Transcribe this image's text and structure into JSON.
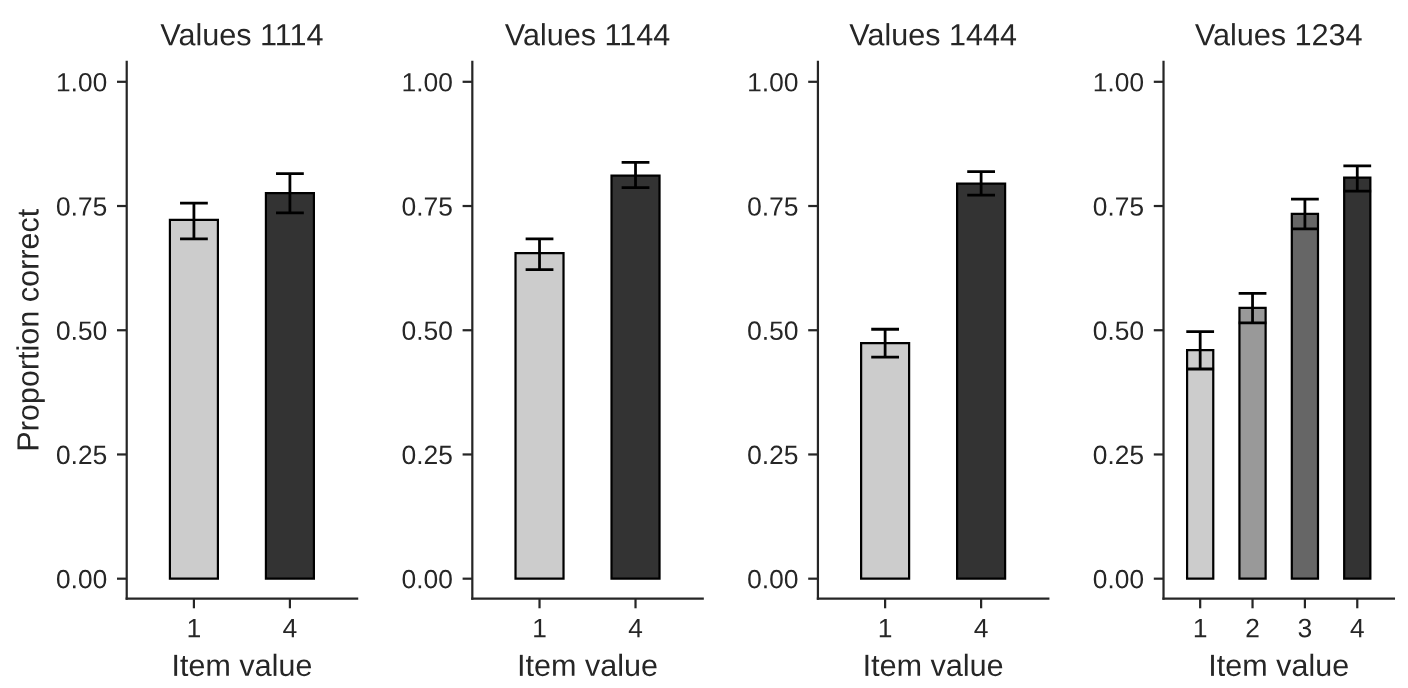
{
  "chart_data": [
    {
      "type": "bar",
      "title": "Values 1114",
      "xlabel": "Item value",
      "ylabel": "Proportion correct",
      "categories": [
        "1",
        "4"
      ],
      "values": [
        0.722,
        0.776
      ],
      "colors": [
        "#cccccc",
        "#333333"
      ],
      "errors": [
        [
          0.684,
          0.756
        ],
        [
          0.736,
          0.815
        ]
      ],
      "ylim": [
        -0.04,
        1.04
      ],
      "yticks": [
        {
          "value": 0,
          "label": "0.00"
        },
        {
          "value": 0.25,
          "label": "0.25"
        },
        {
          "value": 0.5,
          "label": "0.50"
        },
        {
          "value": 0.75,
          "label": "0.75"
        },
        {
          "value": 1,
          "label": "1.00"
        }
      ],
      "grid": false
    },
    {
      "type": "bar",
      "title": "Values 1144",
      "xlabel": "Item value",
      "categories": [
        "1",
        "4"
      ],
      "values": [
        0.655,
        0.811
      ],
      "colors": [
        "#cccccc",
        "#333333"
      ],
      "errors": [
        [
          0.622,
          0.684
        ],
        [
          0.787,
          0.838
        ]
      ],
      "ylim": [
        -0.04,
        1.04
      ],
      "yticks": [
        {
          "value": 0,
          "label": "0.00"
        },
        {
          "value": 0.25,
          "label": "0.25"
        },
        {
          "value": 0.5,
          "label": "0.50"
        },
        {
          "value": 0.75,
          "label": "0.75"
        },
        {
          "value": 1,
          "label": "1.00"
        }
      ],
      "grid": false
    },
    {
      "type": "bar",
      "title": "Values 1444",
      "xlabel": "Item value",
      "categories": [
        "1",
        "4"
      ],
      "values": [
        0.474,
        0.795
      ],
      "colors": [
        "#cccccc",
        "#333333"
      ],
      "errors": [
        [
          0.446,
          0.502
        ],
        [
          0.772,
          0.819
        ]
      ],
      "ylim": [
        -0.04,
        1.04
      ],
      "yticks": [
        {
          "value": 0,
          "label": "0.00"
        },
        {
          "value": 0.25,
          "label": "0.25"
        },
        {
          "value": 0.5,
          "label": "0.50"
        },
        {
          "value": 0.75,
          "label": "0.75"
        },
        {
          "value": 1,
          "label": "1.00"
        }
      ],
      "grid": false
    },
    {
      "type": "bar",
      "title": "Values 1234",
      "xlabel": "Item value",
      "categories": [
        "1",
        "2",
        "3",
        "4"
      ],
      "values": [
        0.46,
        0.545,
        0.734,
        0.807
      ],
      "colors": [
        "#cccccc",
        "#999999",
        "#666666",
        "#333333"
      ],
      "errors": [
        [
          0.422,
          0.497
        ],
        [
          0.515,
          0.574
        ],
        [
          0.704,
          0.764
        ],
        [
          0.78,
          0.831
        ]
      ],
      "ylim": [
        -0.04,
        1.04
      ],
      "yticks": [
        {
          "value": 0,
          "label": "0.00"
        },
        {
          "value": 0.25,
          "label": "0.25"
        },
        {
          "value": 0.5,
          "label": "0.50"
        },
        {
          "value": 0.75,
          "label": "0.75"
        },
        {
          "value": 1,
          "label": "1.00"
        }
      ],
      "grid": false
    }
  ]
}
